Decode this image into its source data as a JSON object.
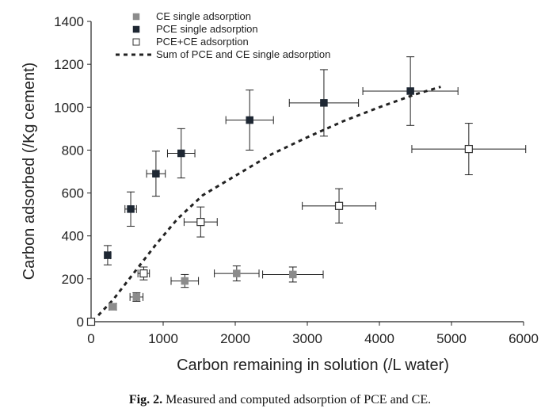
{
  "caption": {
    "label": "Fig. 2.",
    "text": "Measured and computed adsorption of PCE and CE."
  },
  "chart_data": {
    "type": "scatter",
    "xlabel": "Carbon remaining in solution (/L water)",
    "ylabel": "Carbon adsorbed (/Kg cement)",
    "xlim": [
      0,
      6000
    ],
    "ylim": [
      0,
      1400
    ],
    "xticks": [
      0,
      1000,
      2000,
      3000,
      4000,
      5000,
      6000
    ],
    "yticks": [
      0,
      200,
      400,
      600,
      800,
      1000,
      1200,
      1400
    ],
    "grid": false,
    "legend_position": "top-left",
    "series": [
      {
        "name": "CE single adsorption",
        "marker": "filled-square",
        "color": "#8c8c8c",
        "points": [
          {
            "x": 300,
            "y": 70,
            "xerr": 50,
            "yerr": 15
          },
          {
            "x": 630,
            "y": 115,
            "xerr": 90,
            "yerr": 20
          },
          {
            "x": 1300,
            "y": 190,
            "xerr": 190,
            "yerr": 30
          },
          {
            "x": 2020,
            "y": 225,
            "xerr": 310,
            "yerr": 35
          },
          {
            "x": 2800,
            "y": 220,
            "xerr": 420,
            "yerr": 35
          }
        ]
      },
      {
        "name": "PCE single adsorption",
        "marker": "filled-square",
        "color": "#1e2733",
        "points": [
          {
            "x": 230,
            "y": 310,
            "xerr": 40,
            "yerr": 45
          },
          {
            "x": 550,
            "y": 525,
            "xerr": 80,
            "yerr": 80
          },
          {
            "x": 900,
            "y": 690,
            "xerr": 130,
            "yerr": 105
          },
          {
            "x": 1250,
            "y": 785,
            "xerr": 190,
            "yerr": 115
          },
          {
            "x": 2200,
            "y": 940,
            "xerr": 330,
            "yerr": 140
          },
          {
            "x": 3230,
            "y": 1020,
            "xerr": 480,
            "yerr": 155
          },
          {
            "x": 4430,
            "y": 1075,
            "xerr": 660,
            "yerr": 160
          }
        ]
      },
      {
        "name": "PCE+CE adsorption",
        "marker": "open-square",
        "color": "#333333",
        "points": [
          {
            "x": 0,
            "y": 0,
            "xerr": 0,
            "yerr": 0
          },
          {
            "x": 730,
            "y": 225,
            "xerr": 80,
            "yerr": 30
          },
          {
            "x": 1520,
            "y": 465,
            "xerr": 230,
            "yerr": 70
          },
          {
            "x": 3440,
            "y": 540,
            "xerr": 510,
            "yerr": 80
          },
          {
            "x": 5240,
            "y": 805,
            "xerr": 790,
            "yerr": 120
          }
        ]
      }
    ],
    "curve": {
      "name": "Sum of PCE and CE single adsorption",
      "style": "dashed",
      "color": "#222222",
      "points": [
        {
          "x": 100,
          "y": 30
        },
        {
          "x": 300,
          "y": 100
        },
        {
          "x": 600,
          "y": 230
        },
        {
          "x": 900,
          "y": 360
        },
        {
          "x": 1200,
          "y": 480
        },
        {
          "x": 1550,
          "y": 590
        },
        {
          "x": 2000,
          "y": 680
        },
        {
          "x": 2500,
          "y": 780
        },
        {
          "x": 3000,
          "y": 860
        },
        {
          "x": 3500,
          "y": 935
        },
        {
          "x": 4000,
          "y": 1000
        },
        {
          "x": 4500,
          "y": 1060
        },
        {
          "x": 4850,
          "y": 1095
        }
      ]
    }
  }
}
